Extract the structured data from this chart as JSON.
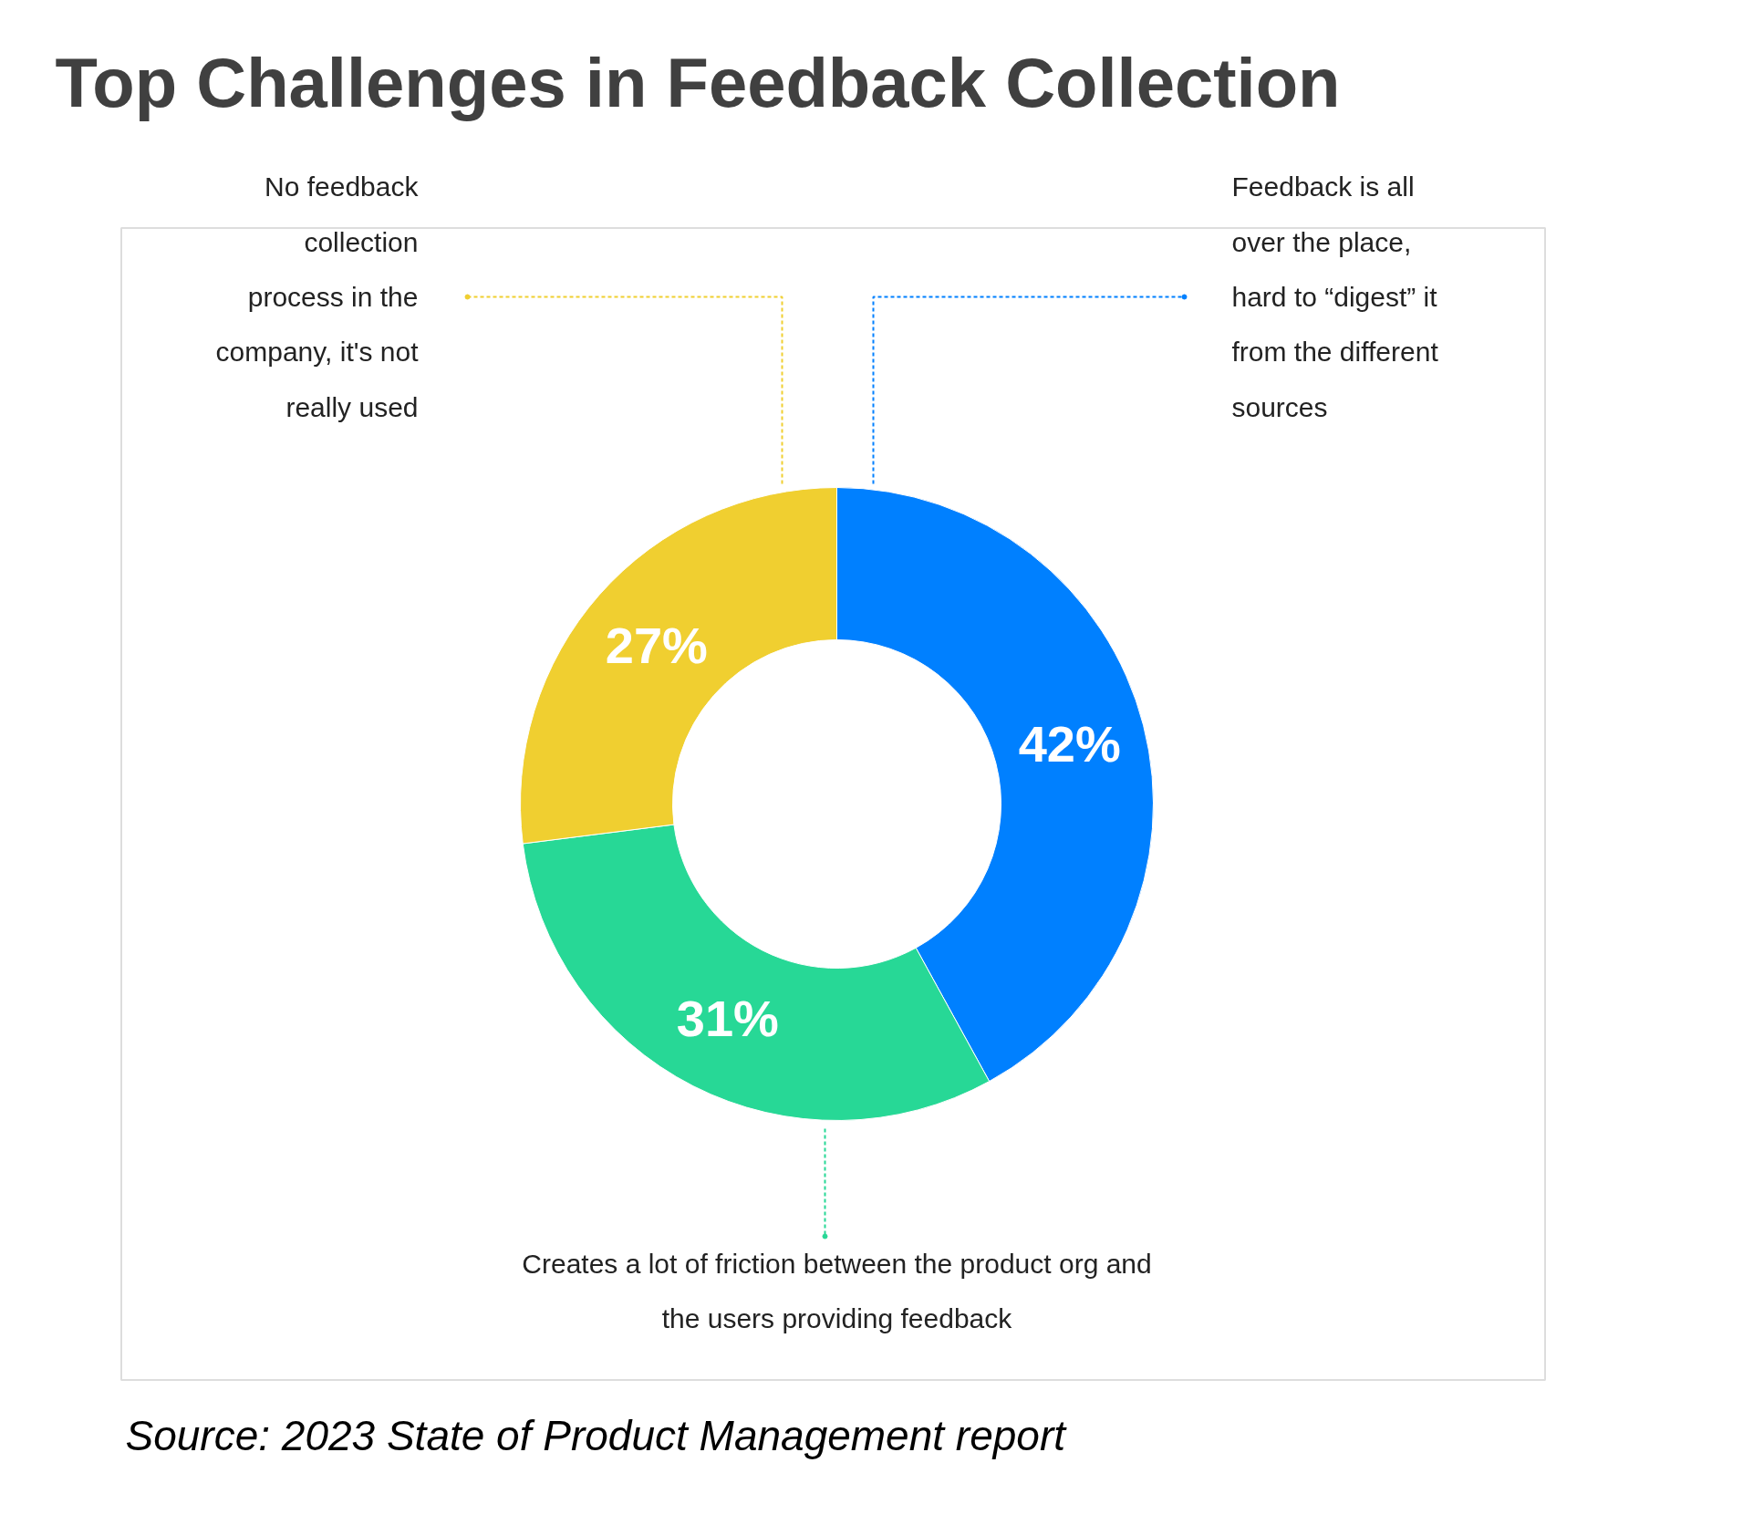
{
  "chart_data": {
    "type": "donut",
    "title": "Top Challenges in Feedback Collection",
    "categories": [
      "Feedback is all\nover the place,\nhard to “digest” it\nfrom the different\nsources",
      "Creates a lot of friction between the product org and\nthe users providing feedback",
      "No feedback\ncollection\nprocess in the\ncompany, it's not\nreally used"
    ],
    "values": [
      42,
      31,
      27
    ],
    "colors": [
      "#0080ff",
      "#27d896",
      "#f0cf30"
    ],
    "value_labels": [
      "42%",
      "31%",
      "27%"
    ],
    "annotations": [
      "Source: 2023 State of Product Management report"
    ]
  }
}
